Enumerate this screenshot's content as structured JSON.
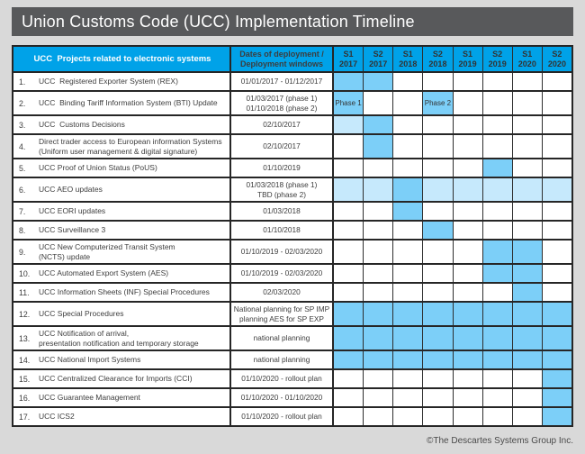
{
  "title": "Union Customs Code (UCC) Implementation Timeline",
  "footer": "©The Descartes Systems Group Inc.",
  "colors": {
    "page_bg": "#D9D9D9",
    "titlebar_bg": "#58595B",
    "header_bg": "#00A2E8",
    "highlight": "#7CCFF8",
    "highlight_light": "#C6E9FC",
    "grid": "#262626",
    "text": "#3D3D3D"
  },
  "chart_data": {
    "type": "table",
    "subtype": "gantt-timeline",
    "title": "Union Customs Code (UCC) Implementation Timeline",
    "project_header": "UCC  Projects related to electronic systems",
    "dates_header": "Dates of deployment /\nDeployment windows",
    "semesters": [
      "S1\n2017",
      "S2\n2017",
      "S1\n2018",
      "S2\n2018",
      "S1\n2019",
      "S2\n2019",
      "S1\n2020",
      "S2\n2020"
    ],
    "cell_state_legend": {
      "0": "empty",
      "1": "deployment-window (blue)",
      "2": "extended-window (light blue)"
    },
    "rows": [
      {
        "num": "1.",
        "project": "UCC  Registered Exporter System (REX)",
        "dates": "01/01/2017 - 01/12/2017",
        "cells": [
          1,
          1,
          0,
          0,
          0,
          0,
          0,
          0
        ]
      },
      {
        "num": "2.",
        "project": "UCC  Binding Tariff Information System (BTI) Update",
        "dates": "01/03/2017 (phase 1)\n01/10/2018 (phase 2)",
        "cells": [
          1,
          0,
          0,
          1,
          0,
          0,
          0,
          0
        ],
        "cell_labels": [
          "Phase 1",
          "",
          "",
          "Phase 2",
          "",
          "",
          "",
          ""
        ]
      },
      {
        "num": "3.",
        "project": "UCC  Customs Decisions",
        "dates": "02/10/2017",
        "cells": [
          2,
          1,
          0,
          0,
          0,
          0,
          0,
          0
        ]
      },
      {
        "num": "4.",
        "project": "Direct trader access to European information Systems\n(Uniform user management & digital signature)",
        "dates": "02/10/2017",
        "cells": [
          0,
          1,
          0,
          0,
          0,
          0,
          0,
          0
        ]
      },
      {
        "num": "5.",
        "project": "UCC Proof of Union Status (PoUS)",
        "dates": "01/10/2019",
        "cells": [
          0,
          0,
          0,
          0,
          0,
          1,
          0,
          0
        ]
      },
      {
        "num": "6.",
        "project": "UCC AEO updates",
        "dates": "01/03/2018 (phase 1)\nTBD (phase 2)",
        "cells": [
          2,
          2,
          1,
          2,
          2,
          2,
          2,
          2
        ]
      },
      {
        "num": "7.",
        "project": "UCC EORI updates",
        "dates": "01/03/2018",
        "cells": [
          0,
          0,
          1,
          0,
          0,
          0,
          0,
          0
        ]
      },
      {
        "num": "8.",
        "project": "UCC Surveillance 3",
        "dates": "01/10/2018",
        "cells": [
          0,
          0,
          0,
          1,
          0,
          0,
          0,
          0
        ]
      },
      {
        "num": "9.",
        "project": "UCC New Computerized Transit System\n(NCTS) update",
        "dates": "01/10/2019 - 02/03/2020",
        "cells": [
          0,
          0,
          0,
          0,
          0,
          1,
          1,
          0
        ]
      },
      {
        "num": "10.",
        "project": "UCC Automated Export System (AES)",
        "dates": "01/10/2019 - 02/03/2020",
        "cells": [
          0,
          0,
          0,
          0,
          0,
          1,
          1,
          0
        ]
      },
      {
        "num": "11.",
        "project": "UCC Information Sheets (INF) Special Procedures",
        "dates": "02/03/2020",
        "cells": [
          0,
          0,
          0,
          0,
          0,
          0,
          1,
          0
        ]
      },
      {
        "num": "12.",
        "project": "UCC Special Procedures",
        "dates": "National planning for SP IMP\nplanning AES for SP EXP",
        "cells": [
          1,
          1,
          1,
          1,
          1,
          1,
          1,
          1
        ]
      },
      {
        "num": "13.",
        "project": "UCC Notification of arrival,\npresentation notification and temporary storage",
        "dates": "national planning",
        "cells": [
          1,
          1,
          1,
          1,
          1,
          1,
          1,
          1
        ]
      },
      {
        "num": "14.",
        "project": "UCC National Import Systems",
        "dates": "national planning",
        "cells": [
          1,
          1,
          1,
          1,
          1,
          1,
          1,
          1
        ]
      },
      {
        "num": "15.",
        "project": "UCC Centralized Clearance for Imports (CCI)",
        "dates": "01/10/2020 - rollout plan",
        "cells": [
          0,
          0,
          0,
          0,
          0,
          0,
          0,
          1
        ]
      },
      {
        "num": "16.",
        "project": "UCC Guarantee Management",
        "dates": "01/10/2020 - 01/10/2020",
        "cells": [
          0,
          0,
          0,
          0,
          0,
          0,
          0,
          1
        ]
      },
      {
        "num": "17.",
        "project": "UCC ICS2",
        "dates": "01/10/2020 - rollout plan",
        "cells": [
          0,
          0,
          0,
          0,
          0,
          0,
          0,
          1
        ]
      }
    ]
  }
}
